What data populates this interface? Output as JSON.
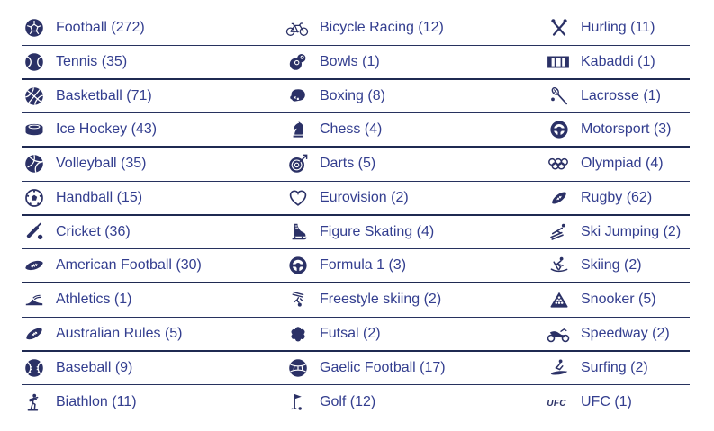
{
  "page": {
    "background": "#ffffff"
  },
  "table": {
    "text_color": "#333e8f",
    "icon_color": "#2b3166",
    "divider_thin_color": "#27325e",
    "divider_thick_color": "#1f2a52",
    "rows": [
      {
        "cells": [
          {
            "label": "Football",
            "count": "272",
            "display": "Football (272)",
            "icon": "football"
          },
          {
            "label": "Bicycle Racing",
            "count": "12",
            "display": "Bicycle Racing (12)",
            "icon": "bicycle-racing"
          },
          {
            "label": "Hurling",
            "count": "11",
            "display": "Hurling (11)",
            "icon": "hurling"
          }
        ]
      },
      {
        "cells": [
          {
            "label": "Tennis",
            "count": "35",
            "display": "Tennis (35)",
            "icon": "tennis"
          },
          {
            "label": "Bowls",
            "count": "1",
            "display": "Bowls (1)",
            "icon": "bowls"
          },
          {
            "label": "Kabaddi",
            "count": "1",
            "display": "Kabaddi (1)",
            "icon": "kabaddi"
          }
        ]
      },
      {
        "cells": [
          {
            "label": "Basketball",
            "count": "71",
            "display": "Basketball (71)",
            "icon": "basketball"
          },
          {
            "label": "Boxing",
            "count": "8",
            "display": "Boxing (8)",
            "icon": "boxing"
          },
          {
            "label": "Lacrosse",
            "count": "1",
            "display": "Lacrosse (1)",
            "icon": "lacrosse"
          }
        ]
      },
      {
        "cells": [
          {
            "label": "Ice Hockey",
            "count": "43",
            "display": "Ice Hockey (43)",
            "icon": "ice-hockey"
          },
          {
            "label": "Chess",
            "count": "4",
            "display": "Chess (4)",
            "icon": "chess"
          },
          {
            "label": "Motorsport",
            "count": "3",
            "display": "Motorsport (3)",
            "icon": "motorsport"
          }
        ]
      },
      {
        "cells": [
          {
            "label": "Volleyball",
            "count": "35",
            "display": "Volleyball (35)",
            "icon": "volleyball"
          },
          {
            "label": "Darts",
            "count": "5",
            "display": "Darts (5)",
            "icon": "darts"
          },
          {
            "label": "Olympiad",
            "count": "4",
            "display": "Olympiad (4)",
            "icon": "olympiad"
          }
        ]
      },
      {
        "cells": [
          {
            "label": "Handball",
            "count": "15",
            "display": "Handball (15)",
            "icon": "handball"
          },
          {
            "label": "Eurovision",
            "count": "2",
            "display": "Eurovision (2)",
            "icon": "eurovision"
          },
          {
            "label": "Rugby",
            "count": "62",
            "display": "Rugby (62)",
            "icon": "rugby"
          }
        ]
      },
      {
        "cells": [
          {
            "label": "Cricket",
            "count": "36",
            "display": "Cricket (36)",
            "icon": "cricket"
          },
          {
            "label": "Figure Skating",
            "count": "4",
            "display": "Figure Skating (4)",
            "icon": "figure-skating"
          },
          {
            "label": "Ski Jumping",
            "count": "2",
            "display": "Ski Jumping (2)",
            "icon": "ski-jumping"
          }
        ]
      },
      {
        "cells": [
          {
            "label": "American Football",
            "count": "30",
            "display": "American Football (30)",
            "icon": "american-football"
          },
          {
            "label": "Formula 1",
            "count": "3",
            "display": "Formula 1 (3)",
            "icon": "formula-1"
          },
          {
            "label": "Skiing",
            "count": "2",
            "display": "Skiing (2)",
            "icon": "skiing"
          }
        ]
      },
      {
        "cells": [
          {
            "label": "Athletics",
            "count": "1",
            "display": "Athletics (1)",
            "icon": "athletics"
          },
          {
            "label": "Freestyle skiing",
            "count": "2",
            "display": "Freestyle skiing (2)",
            "icon": "freestyle-skiing"
          },
          {
            "label": "Snooker",
            "count": "5",
            "display": "Snooker (5)",
            "icon": "snooker"
          }
        ]
      },
      {
        "cells": [
          {
            "label": "Australian Rules",
            "count": "5",
            "display": "Australian Rules (5)",
            "icon": "australian-rules"
          },
          {
            "label": "Futsal",
            "count": "2",
            "display": "Futsal (2)",
            "icon": "futsal"
          },
          {
            "label": "Speedway",
            "count": "2",
            "display": "Speedway (2)",
            "icon": "speedway"
          }
        ]
      },
      {
        "cells": [
          {
            "label": "Baseball",
            "count": "9",
            "display": "Baseball (9)",
            "icon": "baseball"
          },
          {
            "label": "Gaelic Football",
            "count": "17",
            "display": "Gaelic Football (17)",
            "icon": "gaelic-football"
          },
          {
            "label": "Surfing",
            "count": "2",
            "display": "Surfing (2)",
            "icon": "surfing"
          }
        ]
      },
      {
        "cells": [
          {
            "label": "Biathlon",
            "count": "11",
            "display": "Biathlon (11)",
            "icon": "biathlon"
          },
          {
            "label": "Golf",
            "count": "12",
            "display": "Golf (12)",
            "icon": "golf"
          },
          {
            "label": "UFC",
            "count": "1",
            "display": "UFC (1)",
            "icon": "ufc"
          }
        ]
      }
    ]
  }
}
